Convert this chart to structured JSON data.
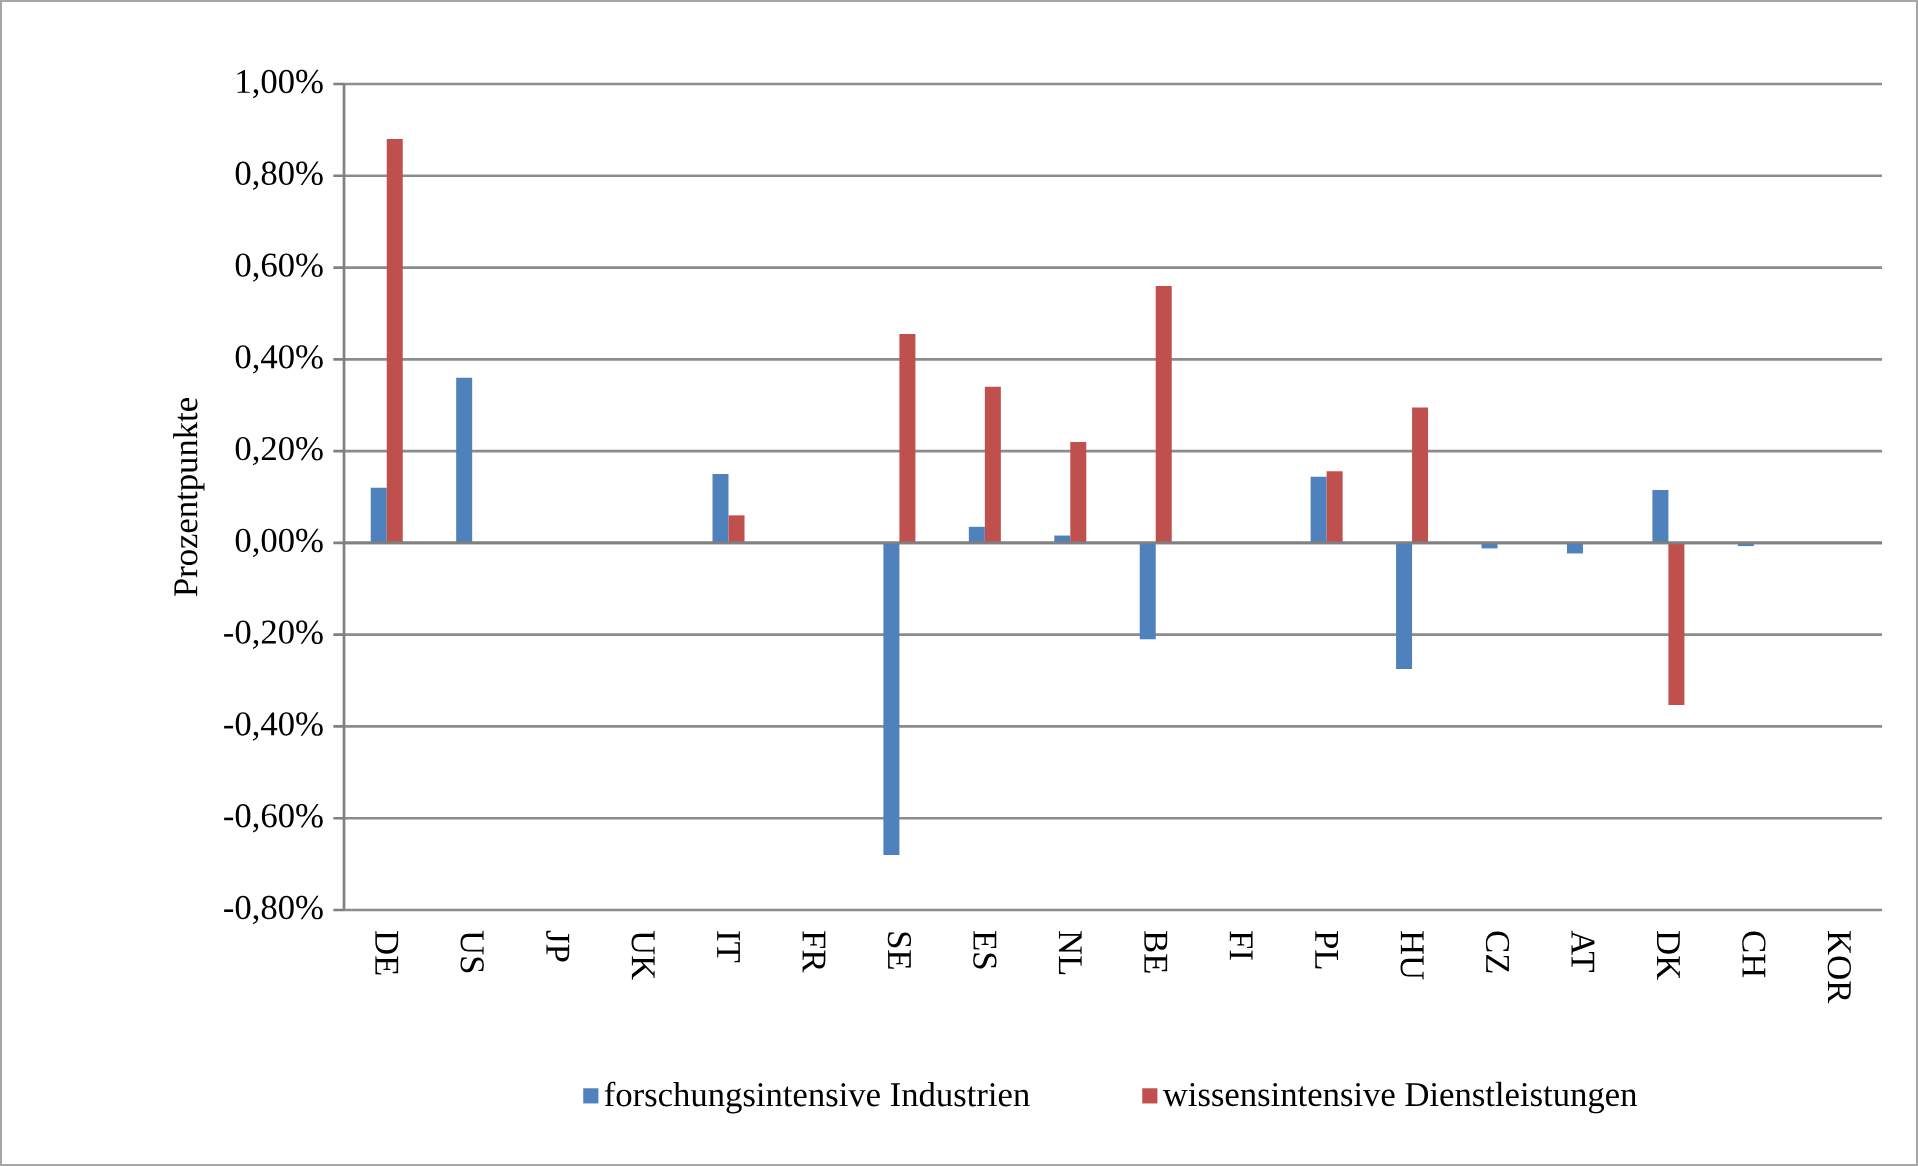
{
  "chart_data": {
    "type": "bar",
    "ylabel": "Prozentpunkte",
    "categories": [
      "DE",
      "US",
      "JP",
      "UK",
      "IT",
      "FR",
      "SE",
      "ES",
      "NL",
      "BE",
      "FI",
      "PL",
      "HU",
      "CZ",
      "AT",
      "DK",
      "CH",
      "KOR"
    ],
    "series": [
      {
        "name": "forschungsintensive Industrien",
        "color": "#4f81bd",
        "values": [
          0.12,
          0.36,
          null,
          null,
          0.15,
          null,
          -0.68,
          0.035,
          0.016,
          -0.21,
          null,
          0.144,
          -0.275,
          -0.012,
          -0.023,
          0.115,
          -0.007,
          null
        ]
      },
      {
        "name": "wissensintensive Dienstleistungen",
        "color": "#c0504d",
        "values": [
          0.88,
          null,
          null,
          null,
          0.06,
          null,
          0.455,
          0.34,
          0.22,
          0.56,
          null,
          0.156,
          0.295,
          null,
          null,
          -0.353,
          null,
          null
        ]
      }
    ],
    "ylim": [
      -0.8,
      1.0
    ],
    "yticks": [
      {
        "value": -0.8,
        "label": "-0,80%"
      },
      {
        "value": -0.6,
        "label": "-0,60%"
      },
      {
        "value": -0.4,
        "label": "-0,40%"
      },
      {
        "value": -0.2,
        "label": "-0,20%"
      },
      {
        "value": 0,
        "label": "0,00%"
      },
      {
        "value": 0.2,
        "label": "0,20%"
      },
      {
        "value": 0.4,
        "label": "0,40%"
      },
      {
        "value": 0.6,
        "label": "0,60%"
      },
      {
        "value": 0.8,
        "label": "0,80%"
      },
      {
        "value": 1.0,
        "label": "1,00%"
      }
    ],
    "grid": "y",
    "legend": "bottom"
  }
}
